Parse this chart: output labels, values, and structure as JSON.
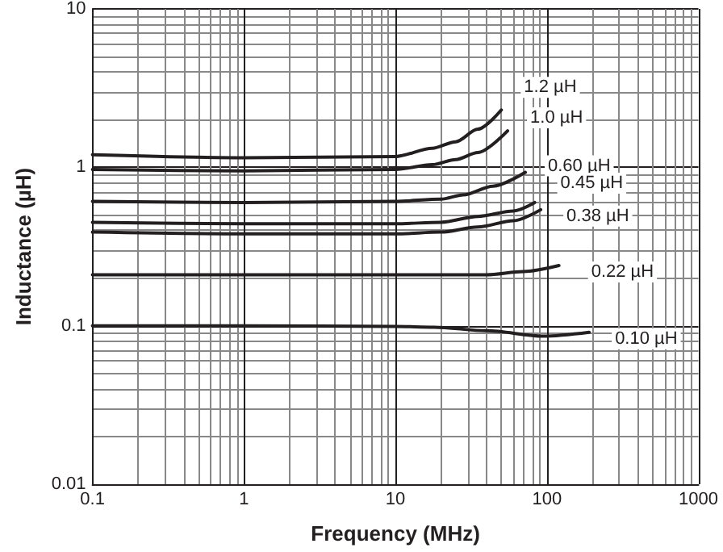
{
  "chart_data": {
    "type": "line",
    "xlabel": "Frequency (MHz)",
    "ylabel": "Inductance (µH)",
    "log": "xy",
    "xlim": [
      0.1,
      1000
    ],
    "ylim": [
      0.01,
      10
    ],
    "xticks": [
      0.1,
      1,
      10,
      100,
      1000
    ],
    "yticks": [
      0.01,
      0.1,
      1,
      10
    ],
    "grid": true,
    "legend": false,
    "marker": "none",
    "line_style": "solid",
    "series": [
      {
        "name": "1.2 µH",
        "color": "#231f20",
        "x": [
          0.1,
          1,
          10,
          17.5,
          25,
          35,
          50
        ],
        "values": [
          1.2,
          1.15,
          1.17,
          1.32,
          1.45,
          1.74,
          2.3
        ]
      },
      {
        "name": "1.0 µH",
        "color": "#231f20",
        "x": [
          0.1,
          1,
          10,
          17.5,
          25,
          35,
          55
        ],
        "values": [
          0.97,
          0.95,
          0.97,
          1.04,
          1.12,
          1.24,
          1.7
        ]
      },
      {
        "name": "0.60 µH",
        "color": "#231f20",
        "x": [
          0.1,
          1,
          10,
          20,
          28,
          44,
          72
        ],
        "values": [
          0.61,
          0.6,
          0.61,
          0.63,
          0.67,
          0.76,
          0.93
        ]
      },
      {
        "name": "0.45 µH",
        "color": "#231f20",
        "x": [
          0.1,
          1,
          10,
          20,
          35,
          60,
          83
        ],
        "values": [
          0.45,
          0.44,
          0.44,
          0.45,
          0.49,
          0.53,
          0.6
        ]
      },
      {
        "name": "0.38 µH",
        "color": "#231f20",
        "x": [
          0.1,
          1,
          10,
          20,
          35,
          60,
          91
        ],
        "values": [
          0.39,
          0.38,
          0.38,
          0.39,
          0.42,
          0.46,
          0.54
        ]
      },
      {
        "name": "0.22 µH",
        "color": "#231f20",
        "x": [
          0.1,
          1,
          10,
          40,
          70,
          120
        ],
        "values": [
          0.21,
          0.21,
          0.21,
          0.21,
          0.22,
          0.24
        ]
      },
      {
        "name": "0.10 µH",
        "color": "#231f20",
        "x": [
          0.1,
          1,
          10,
          18,
          40,
          95,
          190
        ],
        "values": [
          0.1,
          0.1,
          0.099,
          0.098,
          0.093,
          0.086,
          0.091
        ]
      }
    ]
  }
}
